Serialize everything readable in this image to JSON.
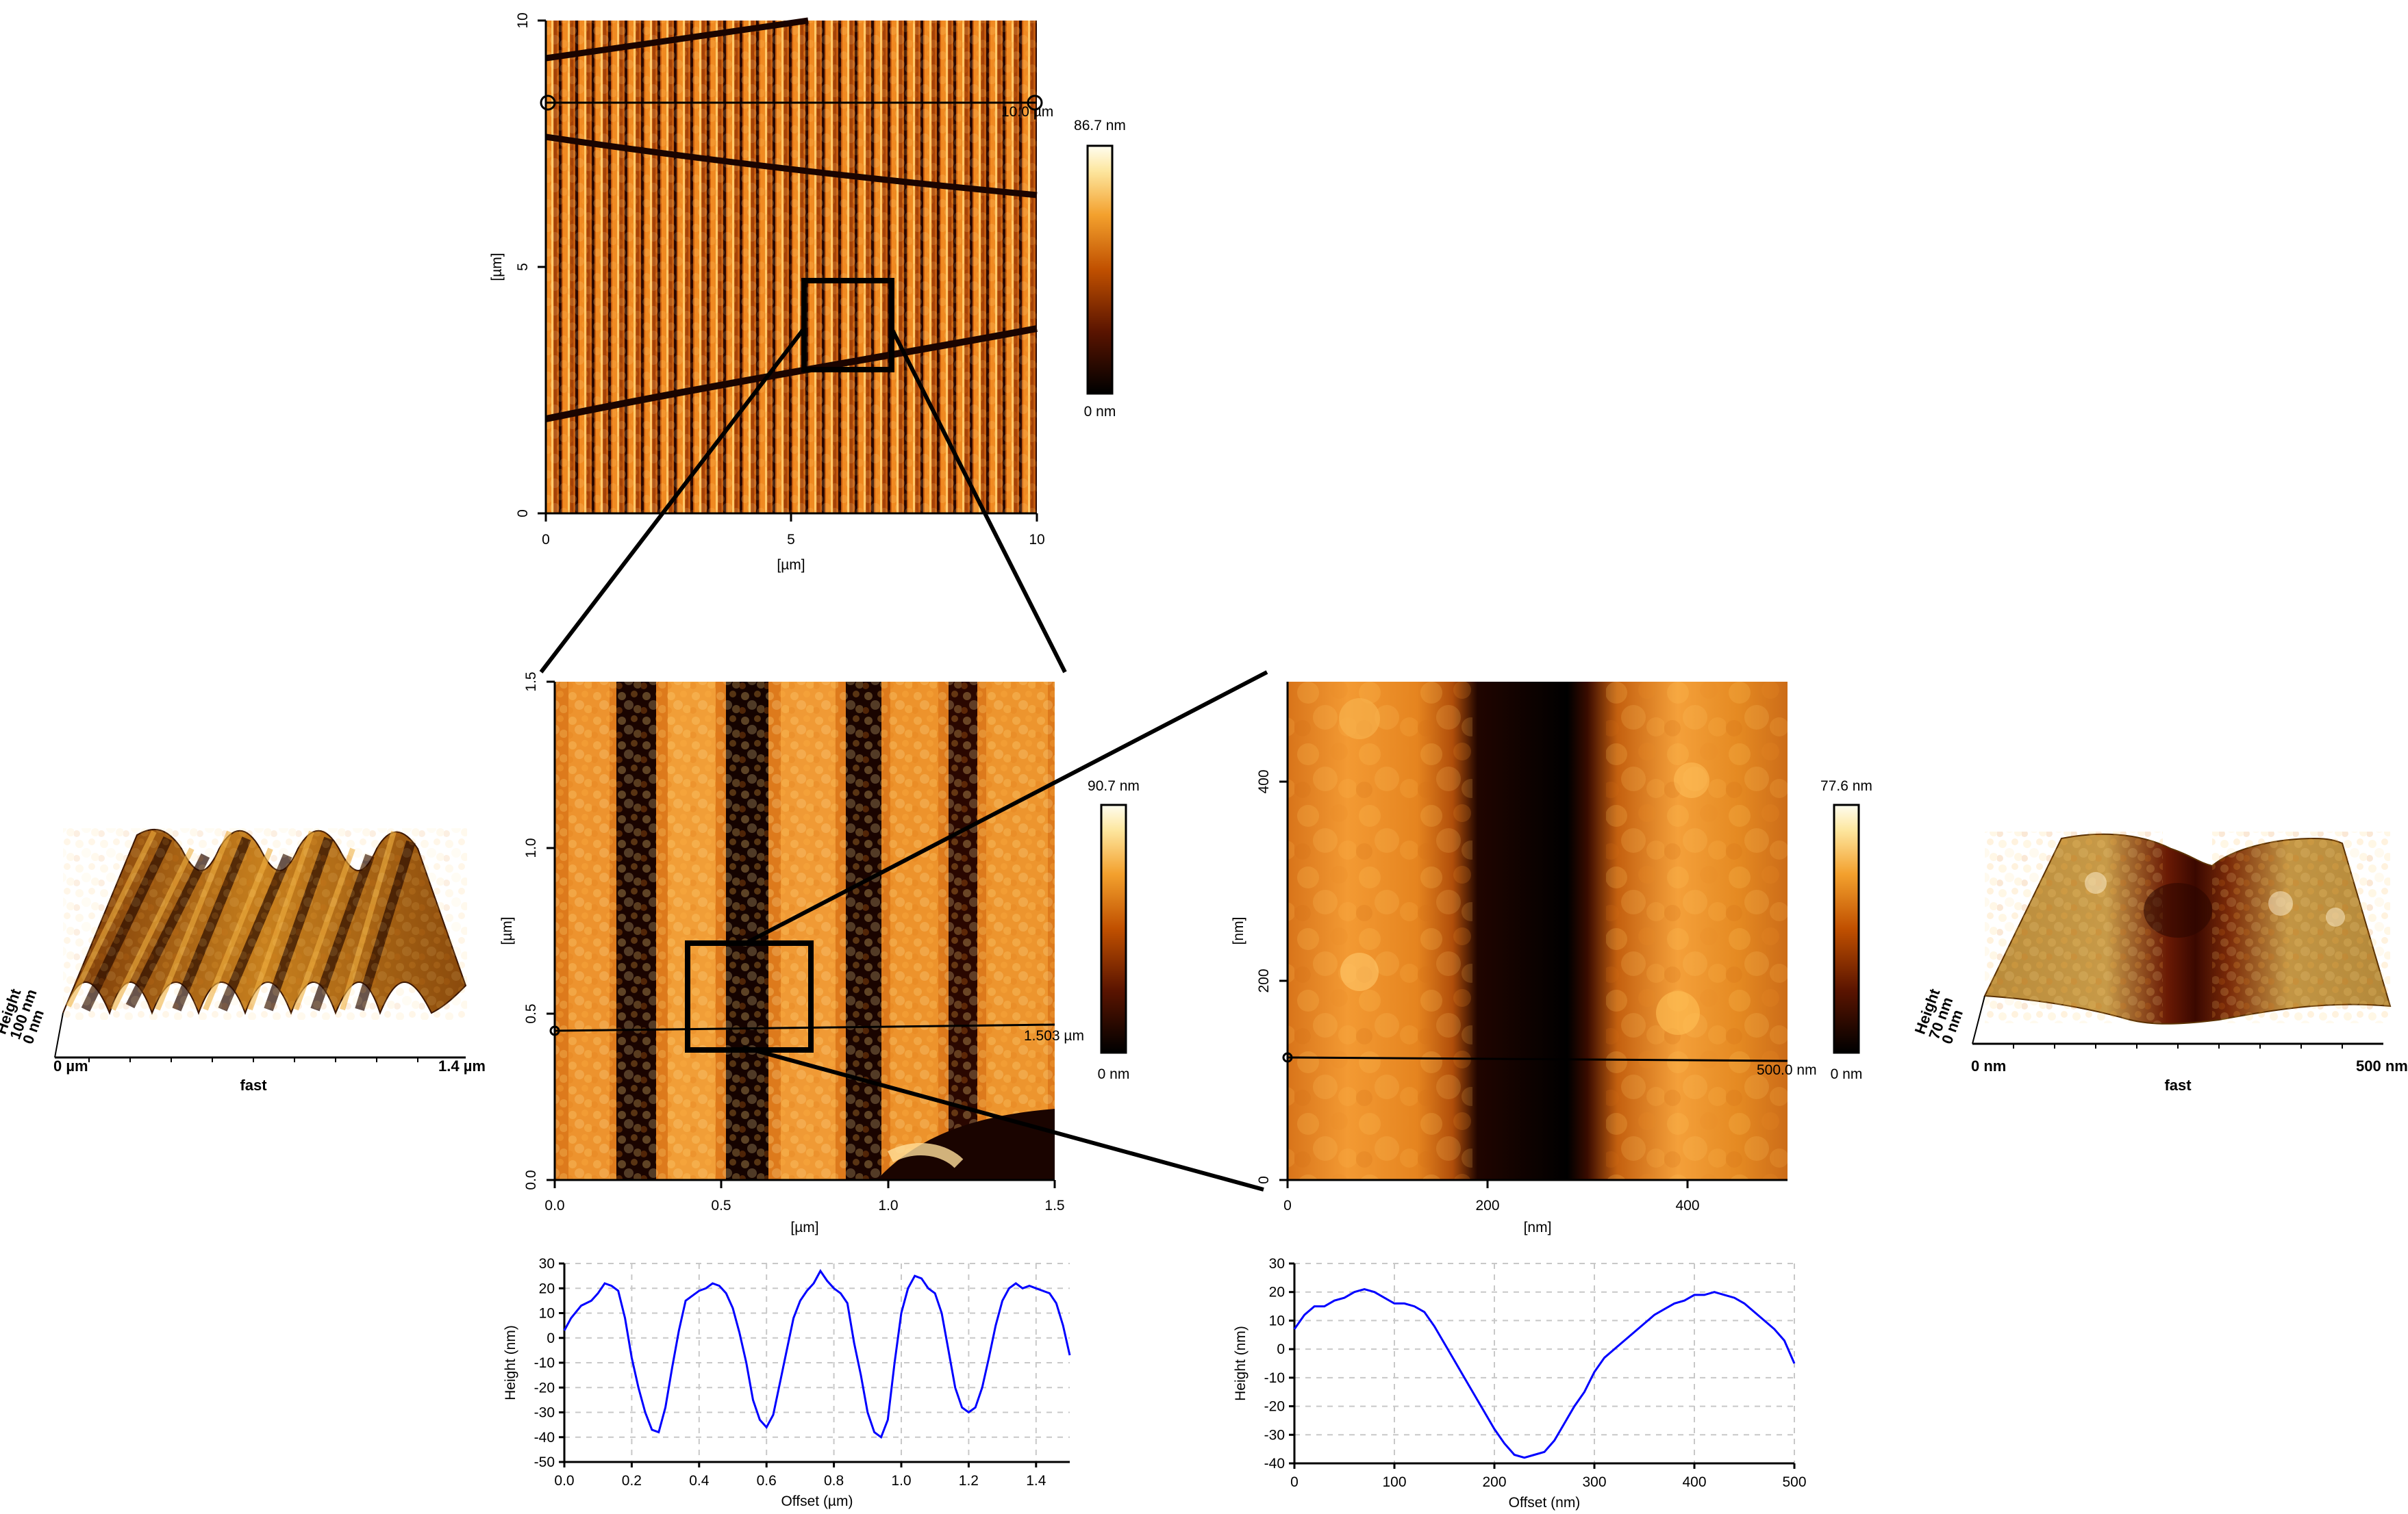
{
  "overview": {
    "xticks": [
      "0",
      "5",
      "10"
    ],
    "yticks": [
      "0",
      "5",
      "10"
    ],
    "xlabel": "[µm]",
    "ylabel": "[µm]",
    "line_label": "10.0 µm",
    "colorbar_max": "86.7 nm",
    "colorbar_min": "0 nm"
  },
  "zoom1": {
    "xticks": [
      "0.0",
      "0.5",
      "1.0",
      "1.5"
    ],
    "yticks": [
      "0.0",
      "0.5",
      "1.0",
      "1.5"
    ],
    "xlabel": "[µm]",
    "ylabel": "[µm]",
    "line_label": "1.503 µm",
    "colorbar_max": "90.7 nm",
    "colorbar_min": "0 nm"
  },
  "zoom2": {
    "xticks": [
      "0",
      "200",
      "400"
    ],
    "yticks": [
      "0",
      "200",
      "400"
    ],
    "xlabel": "[nm]",
    "ylabel": "[nm]",
    "line_label": "500.0 nm",
    "colorbar_max": "77.6 nm",
    "colorbar_min": "0 nm"
  },
  "view3d_left": {
    "x_start": "0 µm",
    "x_end": "1.4 µm",
    "x_axis": "fast",
    "z_top": "100 nm",
    "z_bottom": "0 nm",
    "z_label": "Height"
  },
  "view3d_right": {
    "x_start": "0 nm",
    "x_end": "500 nm",
    "x_axis": "fast",
    "z_top": "70 nm",
    "z_bottom": "0 nm",
    "z_label": "Height"
  },
  "chart_data": [
    {
      "type": "line",
      "xlabel": "Offset (µm)",
      "ylabel": "Height (nm)",
      "xlim": [
        0,
        1.5
      ],
      "ylim": [
        -50,
        30
      ],
      "xticks": [
        "0.0",
        "0.2",
        "0.4",
        "0.6",
        "0.8",
        "1.0",
        "1.2",
        "1.4"
      ],
      "yticks": [
        "-50",
        "-40",
        "-30",
        "-20",
        "-10",
        "0",
        "10",
        "20",
        "30"
      ],
      "grid": true,
      "color": "#0000ff",
      "x": [
        0.0,
        0.02,
        0.05,
        0.08,
        0.1,
        0.12,
        0.14,
        0.16,
        0.18,
        0.2,
        0.22,
        0.24,
        0.26,
        0.28,
        0.3,
        0.32,
        0.34,
        0.36,
        0.38,
        0.4,
        0.42,
        0.44,
        0.46,
        0.48,
        0.5,
        0.52,
        0.54,
        0.56,
        0.58,
        0.6,
        0.62,
        0.64,
        0.66,
        0.68,
        0.7,
        0.72,
        0.74,
        0.76,
        0.78,
        0.8,
        0.82,
        0.84,
        0.86,
        0.88,
        0.9,
        0.92,
        0.94,
        0.96,
        0.98,
        1.0,
        1.02,
        1.04,
        1.06,
        1.08,
        1.1,
        1.12,
        1.14,
        1.16,
        1.18,
        1.2,
        1.22,
        1.24,
        1.26,
        1.28,
        1.3,
        1.32,
        1.34,
        1.36,
        1.38,
        1.4,
        1.42,
        1.44,
        1.46,
        1.48,
        1.5
      ],
      "values": [
        3,
        8,
        13,
        15,
        18,
        22,
        21,
        19,
        8,
        -8,
        -20,
        -30,
        -37,
        -38,
        -28,
        -12,
        3,
        15,
        17,
        19,
        20,
        22,
        21,
        18,
        12,
        2,
        -10,
        -25,
        -33,
        -36,
        -31,
        -18,
        -5,
        8,
        15,
        19,
        22,
        27,
        23,
        20,
        18,
        14,
        -2,
        -15,
        -30,
        -38,
        -40,
        -33,
        -10,
        10,
        20,
        25,
        24,
        20,
        18,
        10,
        -5,
        -20,
        -28,
        -30,
        -28,
        -20,
        -8,
        5,
        15,
        20,
        22,
        20,
        21,
        20,
        19,
        18,
        14,
        5,
        -7
      ]
    },
    {
      "type": "line",
      "xlabel": "Offset (nm)",
      "ylabel": "Height (nm)",
      "xlim": [
        0,
        500
      ],
      "ylim": [
        -40,
        30
      ],
      "xticks": [
        "0",
        "100",
        "200",
        "300",
        "400",
        "500"
      ],
      "yticks": [
        "-40",
        "-30",
        "-20",
        "-10",
        "0",
        "10",
        "20",
        "30"
      ],
      "grid": true,
      "color": "#0000ff",
      "x": [
        0,
        10,
        20,
        30,
        40,
        50,
        60,
        70,
        80,
        90,
        100,
        110,
        120,
        130,
        140,
        150,
        160,
        170,
        180,
        190,
        200,
        210,
        220,
        230,
        240,
        250,
        260,
        270,
        280,
        290,
        300,
        310,
        320,
        330,
        340,
        350,
        360,
        370,
        380,
        390,
        400,
        410,
        420,
        430,
        440,
        450,
        460,
        470,
        480,
        490,
        500
      ],
      "values": [
        7,
        12,
        15,
        15,
        17,
        18,
        20,
        21,
        20,
        18,
        16,
        16,
        15,
        13,
        8,
        2,
        -4,
        -10,
        -16,
        -22,
        -28,
        -33,
        -37,
        -38,
        -37,
        -36,
        -32,
        -26,
        -20,
        -15,
        -8,
        -3,
        0,
        3,
        6,
        9,
        12,
        14,
        16,
        17,
        19,
        19,
        20,
        19,
        18,
        16,
        13,
        10,
        7,
        3,
        -5
      ]
    }
  ]
}
